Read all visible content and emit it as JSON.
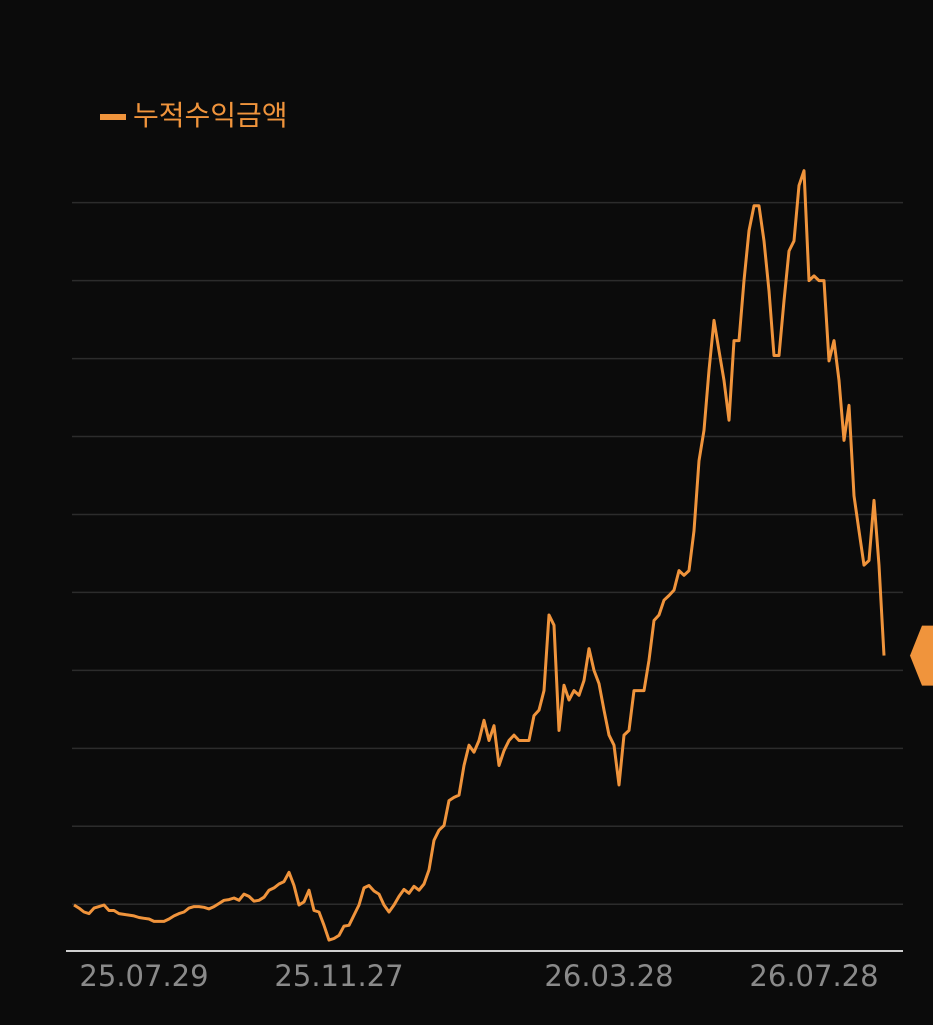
{
  "chart_data": {
    "type": "line",
    "categories": [
      null,
      null,
      null,
      null,
      null,
      null,
      null,
      null,
      null,
      null,
      null,
      null,
      null,
      null,
      "25.07.29",
      null,
      null,
      null,
      null,
      null,
      null,
      null,
      null,
      null,
      null,
      null,
      null,
      null,
      null,
      null,
      null,
      null,
      null,
      null,
      null,
      null,
      null,
      null,
      null,
      null,
      null,
      null,
      null,
      null,
      null,
      null,
      null,
      null,
      null,
      null,
      null,
      null,
      null,
      "25.11.27",
      null,
      null,
      null,
      null,
      null,
      null,
      null,
      null,
      null,
      null,
      null,
      null,
      null,
      null,
      null,
      null,
      null,
      null,
      null,
      null,
      null,
      null,
      null,
      null,
      null,
      null,
      null,
      null,
      null,
      null,
      null,
      null,
      null,
      null,
      null,
      null,
      null,
      null,
      null,
      null,
      null,
      null,
      null,
      null,
      null,
      null,
      null,
      null,
      null,
      null,
      null,
      null,
      null,
      "26.03.28",
      null,
      null,
      null,
      null,
      null,
      null,
      null,
      null,
      null,
      null,
      null,
      null,
      null,
      null,
      null,
      null,
      null,
      null,
      null,
      null,
      null,
      null,
      null,
      null,
      null,
      null,
      null,
      null,
      null,
      null,
      null,
      null,
      null,
      null,
      null,
      null,
      null,
      null,
      null,
      null,
      "26.07.28",
      null,
      null,
      null,
      null,
      null,
      null,
      null,
      null,
      null,
      null,
      null,
      null,
      null,
      null
    ],
    "series": [
      {
        "name": "누적수익금액",
        "color": "#f0943c",
        "values": [
          -0.01,
          -0.05,
          -0.1,
          -0.12,
          -0.05,
          -0.03,
          -0.01,
          -0.08,
          -0.08,
          -0.12,
          -0.13,
          -0.14,
          -0.15,
          -0.17,
          -0.18,
          -0.19,
          -0.22,
          -0.22,
          -0.22,
          -0.19,
          -0.15,
          -0.12,
          -0.1,
          -0.05,
          -0.03,
          -0.03,
          -0.04,
          -0.06,
          -0.03,
          0.01,
          0.05,
          0.06,
          0.08,
          0.05,
          0.13,
          0.1,
          0.04,
          0.05,
          0.09,
          0.18,
          0.21,
          0.26,
          0.29,
          0.41,
          0.24,
          -0.01,
          0.03,
          0.18,
          -0.08,
          -0.1,
          -0.27,
          -0.46,
          -0.44,
          -0.4,
          -0.28,
          -0.27,
          -0.14,
          -0.01,
          0.21,
          0.24,
          0.17,
          0.13,
          -0.01,
          -0.1,
          -0.01,
          0.1,
          0.19,
          0.14,
          0.23,
          0.18,
          0.26,
          0.44,
          0.82,
          0.95,
          1.01,
          1.33,
          1.37,
          1.4,
          1.78,
          2.04,
          1.95,
          2.1,
          2.36,
          2.1,
          2.29,
          1.78,
          1.97,
          2.1,
          2.17,
          2.1,
          2.1,
          2.1,
          2.42,
          2.49,
          2.74,
          3.71,
          3.58,
          2.23,
          2.81,
          2.62,
          2.74,
          2.68,
          2.87,
          3.28,
          3.0,
          2.83,
          2.49,
          2.17,
          2.04,
          1.53,
          2.17,
          2.23,
          2.74,
          2.74,
          2.74,
          3.13,
          3.64,
          3.71,
          3.9,
          3.96,
          4.03,
          4.28,
          4.22,
          4.28,
          4.79,
          5.69,
          6.08,
          6.85,
          7.49,
          7.1,
          6.72,
          6.21,
          7.23,
          7.23,
          8.0,
          8.64,
          8.96,
          8.96,
          8.51,
          7.87,
          7.04,
          7.04,
          7.74,
          8.38,
          8.51,
          9.22,
          9.41,
          8.0,
          8.06,
          8.0,
          8.0,
          6.97,
          7.23,
          6.72,
          5.95,
          6.4,
          5.24,
          4.79,
          4.35,
          4.41,
          5.18,
          4.35,
          3.19
        ]
      }
    ],
    "ylim": [
      -0.6,
      11.6
    ],
    "yticks": [
      0,
      1,
      2,
      3,
      4,
      5,
      6,
      7,
      8,
      9
    ],
    "grid": true,
    "legend": "top-left"
  }
}
